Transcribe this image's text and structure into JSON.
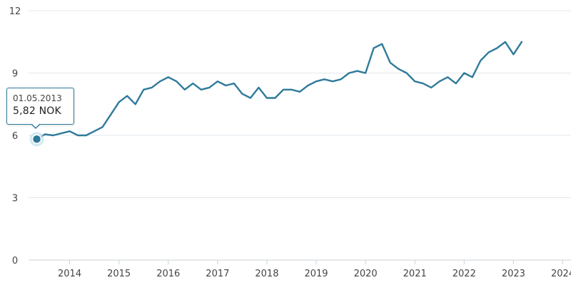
{
  "chart_data": {
    "type": "line",
    "series": [
      {
        "x": [
          "01.05.2013",
          "2013-07",
          "2013-09",
          "2013-11",
          "2014-01",
          "2014-03",
          "2014-05",
          "2014-07",
          "2014-09",
          "2014-11",
          "2015-01",
          "2015-03",
          "2015-05",
          "2015-07",
          "2015-09",
          "2015-11",
          "2016-01",
          "2016-03",
          "2016-05",
          "2016-07",
          "2016-09",
          "2016-11",
          "2017-01",
          "2017-03",
          "2017-05",
          "2017-07",
          "2017-09",
          "2017-11",
          "2018-01",
          "2018-03",
          "2018-05",
          "2018-07",
          "2018-09",
          "2018-11",
          "2019-01",
          "2019-03",
          "2019-05",
          "2019-07",
          "2019-09",
          "2019-11",
          "2020-01",
          "2020-03",
          "2020-05",
          "2020-07",
          "2020-09",
          "2020-11",
          "2021-01",
          "2021-03",
          "2021-05",
          "2021-07",
          "2021-09",
          "2021-11",
          "2022-01",
          "2022-03",
          "2022-05",
          "2022-07",
          "2022-09",
          "2022-11",
          "2023-01",
          "2023-03"
        ],
        "values": [
          5.82,
          6.05,
          6.0,
          6.1,
          6.2,
          6.0,
          6.0,
          6.2,
          6.4,
          7.0,
          7.6,
          7.9,
          7.5,
          8.2,
          8.3,
          8.6,
          8.8,
          8.6,
          8.2,
          8.5,
          8.2,
          8.3,
          8.6,
          8.4,
          8.5,
          8.0,
          7.8,
          8.3,
          7.8,
          7.8,
          8.2,
          8.2,
          8.1,
          8.4,
          8.6,
          8.7,
          8.6,
          8.7,
          9.0,
          9.1,
          9.0,
          10.2,
          10.4,
          9.5,
          9.2,
          9.0,
          8.6,
          8.5,
          8.3,
          8.6,
          8.8,
          8.5,
          9.0,
          8.8,
          9.6,
          10.0,
          10.2,
          10.5,
          9.9,
          10.5
        ]
      }
    ],
    "y_ticks": [
      0,
      3,
      6,
      9,
      12
    ],
    "x_ticks": [
      "2014",
      "2015",
      "2016",
      "2017",
      "2018",
      "2019",
      "2020",
      "2021",
      "2022",
      "2023",
      "2024"
    ],
    "ylim": [
      0,
      12
    ],
    "xlim": [
      "2013-03",
      "2024-03"
    ],
    "grid": true,
    "colors": {
      "line": "#2f7a9a",
      "grid": "#e3e8ec",
      "marker_halo": "#bfe0ee"
    },
    "tooltip": {
      "date": "01.05.2013",
      "value": "5,82 NOK"
    }
  }
}
